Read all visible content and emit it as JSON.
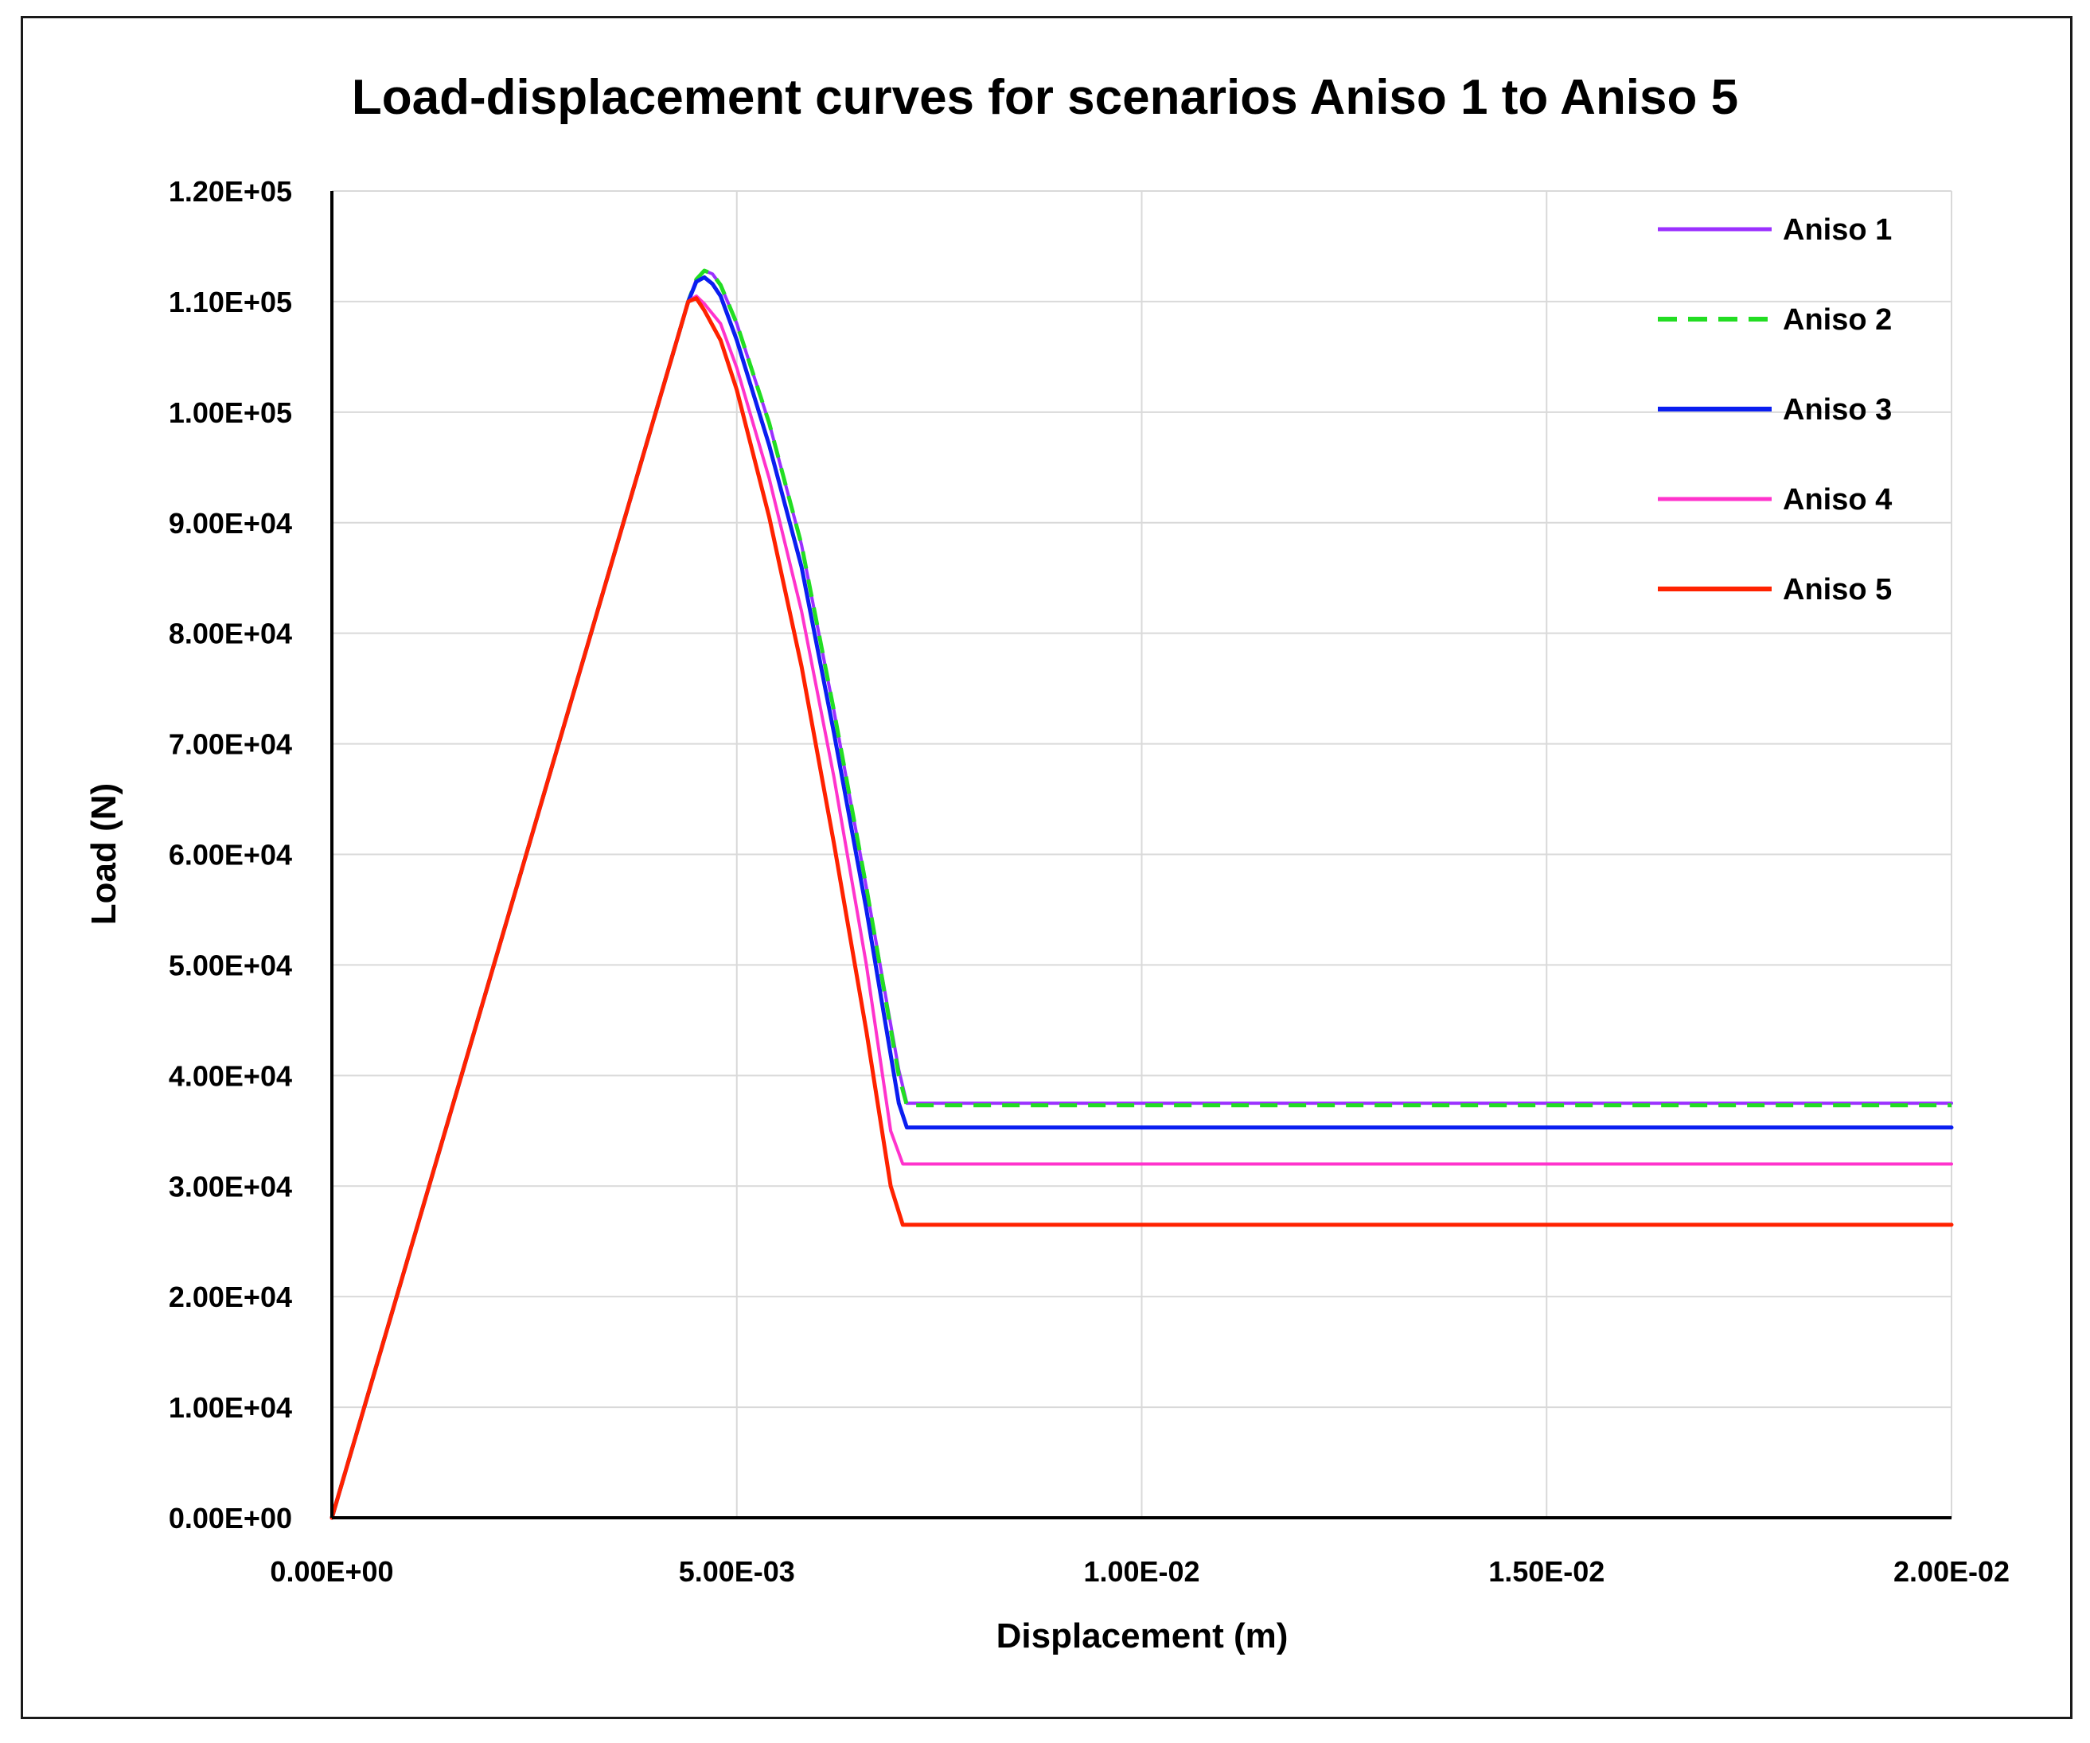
{
  "chart_data": {
    "type": "line",
    "title": "Load-displacement curves for scenarios Aniso 1 to Aniso 5",
    "xlabel": "Displacement (m)",
    "ylabel": "Load (N)",
    "xlim": [
      0,
      0.02
    ],
    "ylim": [
      0,
      120000
    ],
    "grid": true,
    "legend_position": "top-right",
    "x_ticks": [
      0,
      0.005,
      0.01,
      0.015,
      0.02
    ],
    "x_tick_labels": [
      "0.00E+00",
      "5.00E-03",
      "1.00E-02",
      "1.50E-02",
      "2.00E-02"
    ],
    "y_ticks": [
      0,
      10000,
      20000,
      30000,
      40000,
      50000,
      60000,
      70000,
      80000,
      90000,
      100000,
      110000,
      120000
    ],
    "y_tick_labels": [
      "0.00E+00",
      "1.00E+04",
      "2.00E+04",
      "3.00E+04",
      "4.00E+04",
      "5.00E+04",
      "6.00E+04",
      "7.00E+04",
      "8.00E+04",
      "9.00E+04",
      "1.00E+05",
      "1.10E+05",
      "1.20E+05"
    ],
    "series": [
      {
        "name": "Aniso 1",
        "color": "#9b30ff",
        "dash": "solid",
        "stroke": "medium",
        "points": [
          [
            0,
            0
          ],
          [
            0.0044,
            110000
          ],
          [
            0.0045,
            112000
          ],
          [
            0.0046,
            112800
          ],
          [
            0.0047,
            112500
          ],
          [
            0.0048,
            111500
          ],
          [
            0.005,
            108000
          ],
          [
            0.0054,
            99000
          ],
          [
            0.0058,
            88000
          ],
          [
            0.0062,
            73000
          ],
          [
            0.0066,
            57000
          ],
          [
            0.007,
            40500
          ],
          [
            0.0071,
            37500
          ],
          [
            0.02,
            37500
          ]
        ]
      },
      {
        "name": "Aniso 2",
        "color": "#22dd22",
        "dash": "dashed",
        "stroke": "thick",
        "points": [
          [
            0,
            0
          ],
          [
            0.0044,
            110000
          ],
          [
            0.0045,
            112000
          ],
          [
            0.0046,
            112800
          ],
          [
            0.0047,
            112500
          ],
          [
            0.0048,
            111500
          ],
          [
            0.005,
            108000
          ],
          [
            0.0054,
            99000
          ],
          [
            0.0058,
            88000
          ],
          [
            0.0062,
            73000
          ],
          [
            0.0066,
            57000
          ],
          [
            0.007,
            40000
          ],
          [
            0.0071,
            37300
          ],
          [
            0.02,
            37300
          ]
        ]
      },
      {
        "name": "Aniso 3",
        "color": "#0a1ef0",
        "dash": "solid",
        "stroke": "thick",
        "points": [
          [
            0,
            0
          ],
          [
            0.0044,
            110000
          ],
          [
            0.0045,
            111800
          ],
          [
            0.0046,
            112200
          ],
          [
            0.0047,
            111600
          ],
          [
            0.0048,
            110500
          ],
          [
            0.005,
            106500
          ],
          [
            0.0054,
            97000
          ],
          [
            0.0058,
            86000
          ],
          [
            0.0062,
            71000
          ],
          [
            0.0066,
            55000
          ],
          [
            0.007,
            37500
          ],
          [
            0.0071,
            35300
          ],
          [
            0.02,
            35300
          ]
        ]
      },
      {
        "name": "Aniso 4",
        "color": "#ff33cc",
        "dash": "solid",
        "stroke": "medium",
        "points": [
          [
            0,
            0
          ],
          [
            0.0044,
            110000
          ],
          [
            0.0045,
            110500
          ],
          [
            0.0046,
            109800
          ],
          [
            0.0048,
            108000
          ],
          [
            0.005,
            104000
          ],
          [
            0.0054,
            94000
          ],
          [
            0.0058,
            82000
          ],
          [
            0.0062,
            67000
          ],
          [
            0.0066,
            50000
          ],
          [
            0.0069,
            35000
          ],
          [
            0.00705,
            32000
          ],
          [
            0.02,
            32000
          ]
        ]
      },
      {
        "name": "Aniso 5",
        "color": "#ff2200",
        "dash": "solid",
        "stroke": "thick",
        "points": [
          [
            0,
            0
          ],
          [
            0.0044,
            110000
          ],
          [
            0.0045,
            110300
          ],
          [
            0.0046,
            109200
          ],
          [
            0.0048,
            106500
          ],
          [
            0.005,
            102000
          ],
          [
            0.0054,
            90500
          ],
          [
            0.0058,
            77000
          ],
          [
            0.0062,
            61000
          ],
          [
            0.0066,
            44000
          ],
          [
            0.0069,
            30000
          ],
          [
            0.00705,
            26500
          ],
          [
            0.02,
            26500
          ]
        ]
      }
    ]
  }
}
